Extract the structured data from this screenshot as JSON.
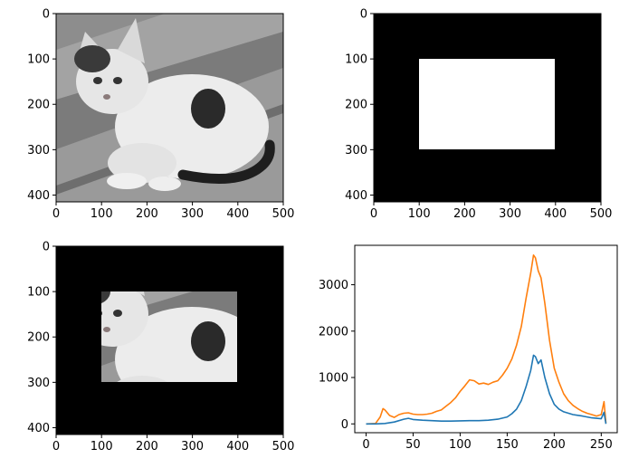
{
  "chart_data": [
    {
      "type": "image",
      "image": "grayscale photo of white kitten with dark patches",
      "xlim": [
        0,
        500
      ],
      "ylim": [
        415,
        0
      ],
      "xticks": [
        0,
        100,
        200,
        300,
        400,
        500
      ],
      "yticks": [
        0,
        100,
        200,
        300,
        400
      ],
      "xtick_labels": [
        "0",
        "100",
        "200",
        "300",
        "400",
        "500"
      ],
      "ytick_labels": [
        "0",
        "100",
        "200",
        "300",
        "400"
      ]
    },
    {
      "type": "image",
      "image": "binary mask: white rectangle on black background",
      "mask_rect": {
        "x0": 100,
        "x1": 400,
        "y0": 100,
        "y1": 300
      },
      "xlim": [
        0,
        500
      ],
      "ylim": [
        415,
        0
      ],
      "xticks": [
        0,
        100,
        200,
        300,
        400,
        500
      ],
      "yticks": [
        0,
        100,
        200,
        300,
        400
      ],
      "xtick_labels": [
        "0",
        "100",
        "200",
        "300",
        "400",
        "500"
      ],
      "ytick_labels": [
        "0",
        "100",
        "200",
        "300",
        "400"
      ]
    },
    {
      "type": "image",
      "image": "masked grayscale kitten photo (rectangle region visible, rest black)",
      "mask_rect": {
        "x0": 100,
        "x1": 400,
        "y0": 100,
        "y1": 300
      },
      "xlim": [
        0,
        500
      ],
      "ylim": [
        415,
        0
      ],
      "xticks": [
        0,
        100,
        200,
        300,
        400,
        500
      ],
      "yticks": [
        0,
        100,
        200,
        300,
        400
      ],
      "xtick_labels": [
        "0",
        "100",
        "200",
        "300",
        "400",
        "500"
      ],
      "ytick_labels": [
        "0",
        "100",
        "200",
        "300",
        "400"
      ]
    },
    {
      "type": "line",
      "xlim": [
        -12,
        267
      ],
      "ylim": [
        -190,
        3850
      ],
      "xticks": [
        0,
        50,
        100,
        150,
        200,
        250
      ],
      "yticks": [
        0,
        1000,
        2000,
        3000
      ],
      "xtick_labels": [
        "0",
        "50",
        "100",
        "150",
        "200",
        "250"
      ],
      "ytick_labels": [
        "0",
        "1000",
        "2000",
        "3000"
      ],
      "series": [
        {
          "color": "#ff7f0e",
          "points": [
            [
              0,
              0
            ],
            [
              10,
              10
            ],
            [
              15,
              150
            ],
            [
              18,
              330
            ],
            [
              20,
              300
            ],
            [
              25,
              180
            ],
            [
              30,
              140
            ],
            [
              35,
              200
            ],
            [
              40,
              230
            ],
            [
              45,
              240
            ],
            [
              50,
              210
            ],
            [
              55,
              200
            ],
            [
              60,
              200
            ],
            [
              65,
              210
            ],
            [
              70,
              230
            ],
            [
              75,
              270
            ],
            [
              80,
              300
            ],
            [
              85,
              380
            ],
            [
              90,
              460
            ],
            [
              95,
              560
            ],
            [
              100,
              700
            ],
            [
              105,
              820
            ],
            [
              110,
              950
            ],
            [
              115,
              930
            ],
            [
              120,
              860
            ],
            [
              125,
              880
            ],
            [
              130,
              850
            ],
            [
              135,
              900
            ],
            [
              140,
              930
            ],
            [
              145,
              1050
            ],
            [
              150,
              1200
            ],
            [
              155,
              1400
            ],
            [
              160,
              1700
            ],
            [
              165,
              2100
            ],
            [
              170,
              2700
            ],
            [
              175,
              3250
            ],
            [
              178,
              3640
            ],
            [
              180,
              3580
            ],
            [
              183,
              3300
            ],
            [
              186,
              3150
            ],
            [
              190,
              2600
            ],
            [
              195,
              1800
            ],
            [
              200,
              1200
            ],
            [
              205,
              900
            ],
            [
              210,
              650
            ],
            [
              215,
              500
            ],
            [
              220,
              400
            ],
            [
              225,
              330
            ],
            [
              230,
              270
            ],
            [
              235,
              230
            ],
            [
              240,
              200
            ],
            [
              245,
              170
            ],
            [
              250,
              200
            ],
            [
              253,
              480
            ],
            [
              255,
              20
            ]
          ]
        },
        {
          "color": "#1f77b4",
          "points": [
            [
              0,
              0
            ],
            [
              10,
              0
            ],
            [
              20,
              10
            ],
            [
              30,
              40
            ],
            [
              40,
              100
            ],
            [
              45,
              120
            ],
            [
              50,
              95
            ],
            [
              60,
              80
            ],
            [
              70,
              70
            ],
            [
              80,
              60
            ],
            [
              90,
              60
            ],
            [
              100,
              65
            ],
            [
              110,
              70
            ],
            [
              120,
              70
            ],
            [
              130,
              80
            ],
            [
              140,
              100
            ],
            [
              150,
              150
            ],
            [
              155,
              220
            ],
            [
              160,
              320
            ],
            [
              165,
              500
            ],
            [
              170,
              800
            ],
            [
              175,
              1150
            ],
            [
              178,
              1480
            ],
            [
              180,
              1450
            ],
            [
              183,
              1300
            ],
            [
              186,
              1380
            ],
            [
              190,
              1000
            ],
            [
              195,
              650
            ],
            [
              200,
              420
            ],
            [
              205,
              320
            ],
            [
              210,
              260
            ],
            [
              220,
              200
            ],
            [
              230,
              170
            ],
            [
              240,
              130
            ],
            [
              250,
              110
            ],
            [
              253,
              250
            ],
            [
              255,
              0
            ]
          ]
        }
      ]
    }
  ]
}
